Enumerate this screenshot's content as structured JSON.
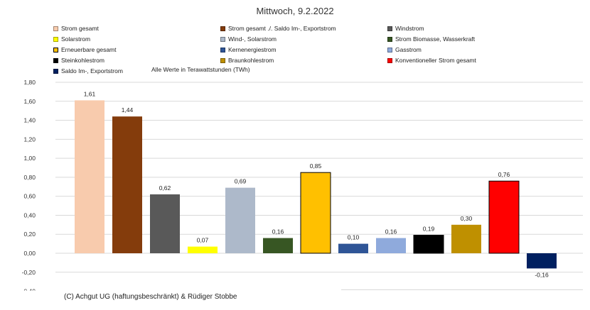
{
  "title": "Mittwoch,  9.2.2022",
  "note": "Alle Werte in Terawattstunden (TWh)",
  "copyright": "(C) Achgut UG (haftungsbeschränkt) & Rüdiger Stobbe",
  "legend": [
    {
      "label": "Strom gesamt",
      "color": "#f8cbad"
    },
    {
      "label": "Strom gesamt ./. Saldo Im-, Exportstrom",
      "color": "#843c0c"
    },
    {
      "label": "Windstrom",
      "color": "#595959"
    },
    {
      "label": "Solarstrom",
      "color": "#ffff00"
    },
    {
      "label": "Wind-, Solarstrom",
      "color": "#adb9ca"
    },
    {
      "label": "Strom Biomasse, Wasserkraft",
      "color": "#375623"
    },
    {
      "label": "Erneuerbare gesamt",
      "color": "#ffc000"
    },
    {
      "label": "Kernenergiestrom",
      "color": "#2f5597"
    },
    {
      "label": "Gasstrom",
      "color": "#8faadc"
    },
    {
      "label": "Steinkohlestrom",
      "color": "#000000"
    },
    {
      "label": "Braunkohlestrom",
      "color": "#bf9000"
    },
    {
      "label": "Konventioneller Strom gesamt",
      "color": "#ff0000"
    },
    {
      "label": "Saldo Im-, Exportstrom",
      "color": "#002060"
    }
  ],
  "chart_data": {
    "type": "bar",
    "categories": [
      "Strom gesamt",
      "Strom gesamt ./. Saldo Im-, Exportstrom",
      "Windstrom",
      "Solarstrom",
      "Wind-, Solarstrom",
      "Strom Biomasse, Wasserkraft",
      "Erneuerbare gesamt",
      "Kernenergiestrom",
      "Gasstrom",
      "Steinkohlestrom",
      "Braunkohlestrom",
      "Konventioneller Strom gesamt",
      "Saldo Im-, Exportstrom"
    ],
    "values": [
      1.61,
      1.44,
      0.62,
      0.07,
      0.69,
      0.16,
      0.85,
      0.1,
      0.16,
      0.19,
      0.3,
      0.76,
      -0.16
    ],
    "value_labels": [
      "1,61",
      "1,44",
      "0,62",
      "0,07",
      "0,69",
      "0,16",
      "0,85",
      "0,10",
      "0,16",
      "0,19",
      "0,30",
      "0,76",
      "-0,16"
    ],
    "colors": [
      "#f8cbad",
      "#843c0c",
      "#595959",
      "#ffff00",
      "#adb9ca",
      "#375623",
      "#ffc000",
      "#2f5597",
      "#8faadc",
      "#000000",
      "#bf9000",
      "#ff0000",
      "#002060"
    ],
    "outlined": [
      false,
      false,
      false,
      false,
      false,
      false,
      true,
      false,
      false,
      true,
      false,
      true,
      false
    ],
    "yticks": [
      1.8,
      1.6,
      1.4,
      1.2,
      1.0,
      0.8,
      0.6,
      0.4,
      0.2,
      0.0,
      -0.2
    ],
    "ytick_labels": [
      "1,80",
      "1,60",
      "1,40",
      "1,20",
      "1,00",
      "0,80",
      "0,60",
      "0,40",
      "0,20",
      "0,00",
      "-0,20"
    ],
    "ylim": [
      -0.36,
      1.8
    ],
    "grid": true,
    "legend_position": "top"
  }
}
